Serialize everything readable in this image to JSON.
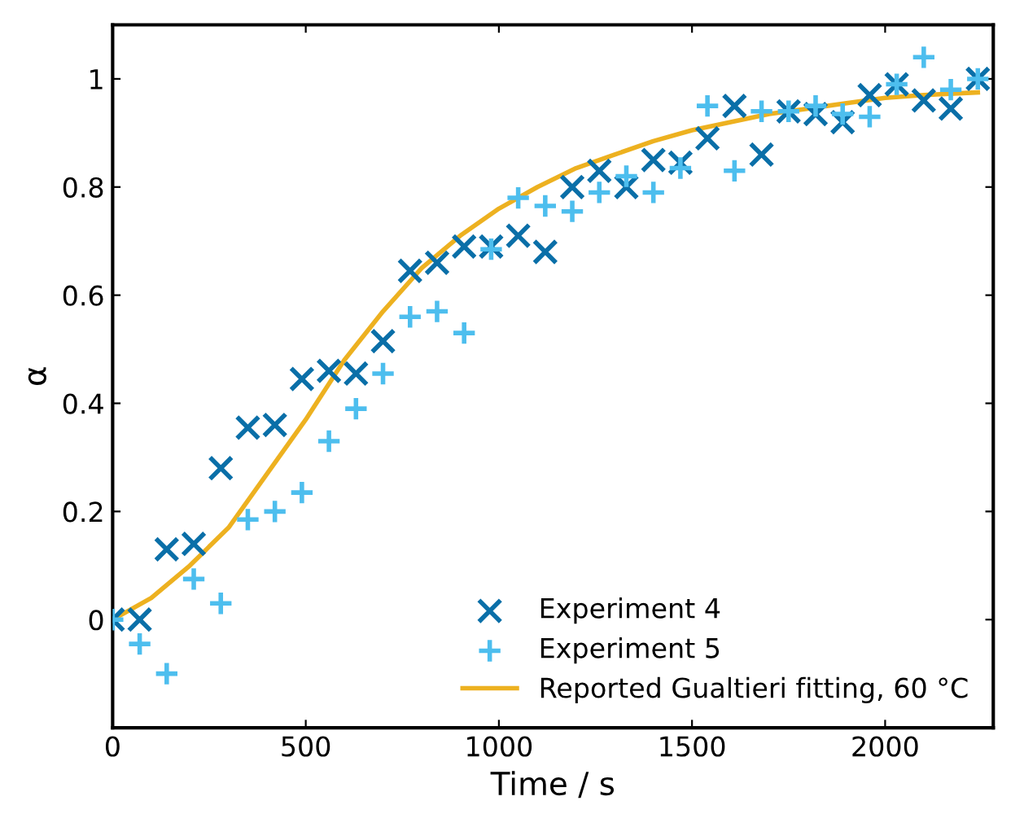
{
  "chart_data": {
    "type": "scatter",
    "xlabel": "Time / s",
    "ylabel": "α",
    "xlim": [
      0,
      2280
    ],
    "ylim": [
      -0.2,
      1.1
    ],
    "xticks": [
      0,
      500,
      1000,
      1500,
      2000
    ],
    "yticks": [
      0,
      0.2,
      0.4,
      0.6,
      0.8,
      1
    ],
    "grid": false,
    "legend": "bottom right",
    "x": [
      0,
      70,
      140,
      210,
      280,
      350,
      420,
      490,
      560,
      630,
      700,
      770,
      840,
      910,
      980,
      1050,
      1120,
      1190,
      1260,
      1330,
      1400,
      1470,
      1540,
      1610,
      1680,
      1750,
      1820,
      1890,
      1960,
      2030,
      2100,
      2170,
      2240
    ],
    "series": [
      {
        "name": "Experiment 4",
        "color": "#0a6fa8",
        "marker": "cross",
        "values": [
          0,
          0,
          0.13,
          0.14,
          0.28,
          0.355,
          0.36,
          0.445,
          0.46,
          0.455,
          0.515,
          0.645,
          0.66,
          0.69,
          0.69,
          0.71,
          0.68,
          0.8,
          0.83,
          0.8,
          0.85,
          0.845,
          0.89,
          0.95,
          0.86,
          0.94,
          0.935,
          0.92,
          0.97,
          0.99,
          0.96,
          0.945,
          1.0
        ]
      },
      {
        "name": "Experiment 5",
        "color": "#4dbeee",
        "marker": "plus",
        "values": [
          0,
          -0.045,
          -0.1,
          0.075,
          0.03,
          0.185,
          0.2,
          0.235,
          0.33,
          0.39,
          0.455,
          0.56,
          0.57,
          0.53,
          0.685,
          0.78,
          0.765,
          0.755,
          0.79,
          0.82,
          0.79,
          0.835,
          0.95,
          0.83,
          0.94,
          0.94,
          0.95,
          0.935,
          0.93,
          0.99,
          1.04,
          0.98,
          1.0
        ]
      },
      {
        "name": "Reported Gualtieri fitting, 60 °C",
        "type": "line",
        "color": "#edb120",
        "marker": "none",
        "line_style": "solid",
        "x": [
          0,
          100,
          200,
          300,
          400,
          500,
          600,
          700,
          800,
          900,
          1000,
          1100,
          1200,
          1300,
          1400,
          1500,
          1600,
          1700,
          1800,
          1900,
          2000,
          2100,
          2240
        ],
        "values": [
          0,
          0.04,
          0.1,
          0.17,
          0.27,
          0.37,
          0.48,
          0.57,
          0.65,
          0.71,
          0.76,
          0.8,
          0.835,
          0.86,
          0.885,
          0.905,
          0.92,
          0.935,
          0.945,
          0.955,
          0.965,
          0.97,
          0.975
        ]
      }
    ]
  }
}
